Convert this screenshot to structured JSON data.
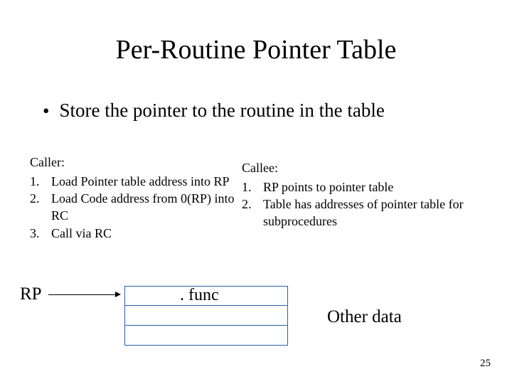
{
  "title": "Per-Routine Pointer Table",
  "bullet": "Store the pointer to the routine in the table",
  "caller": {
    "heading": "Caller:",
    "items": [
      {
        "n": "1.",
        "t": "Load Pointer table address into RP"
      },
      {
        "n": "2.",
        "t": "Load Code address from 0(RP) into RC"
      },
      {
        "n": "3.",
        "t": "Call via RC"
      }
    ]
  },
  "callee": {
    "heading": "Callee:",
    "items": [
      {
        "n": "1.",
        "t": "RP points to pointer table"
      },
      {
        "n": "2.",
        "t": "Table has addresses of pointer table for subprocedures"
      }
    ]
  },
  "diagram": {
    "rp_label": "RP",
    "func_label": ". func",
    "other_data": "Other data",
    "cell_border_color": "#2a5fa8",
    "n_cells": 3
  },
  "page_number": "25",
  "colors": {
    "background": "#ffffff",
    "text": "#000000"
  }
}
